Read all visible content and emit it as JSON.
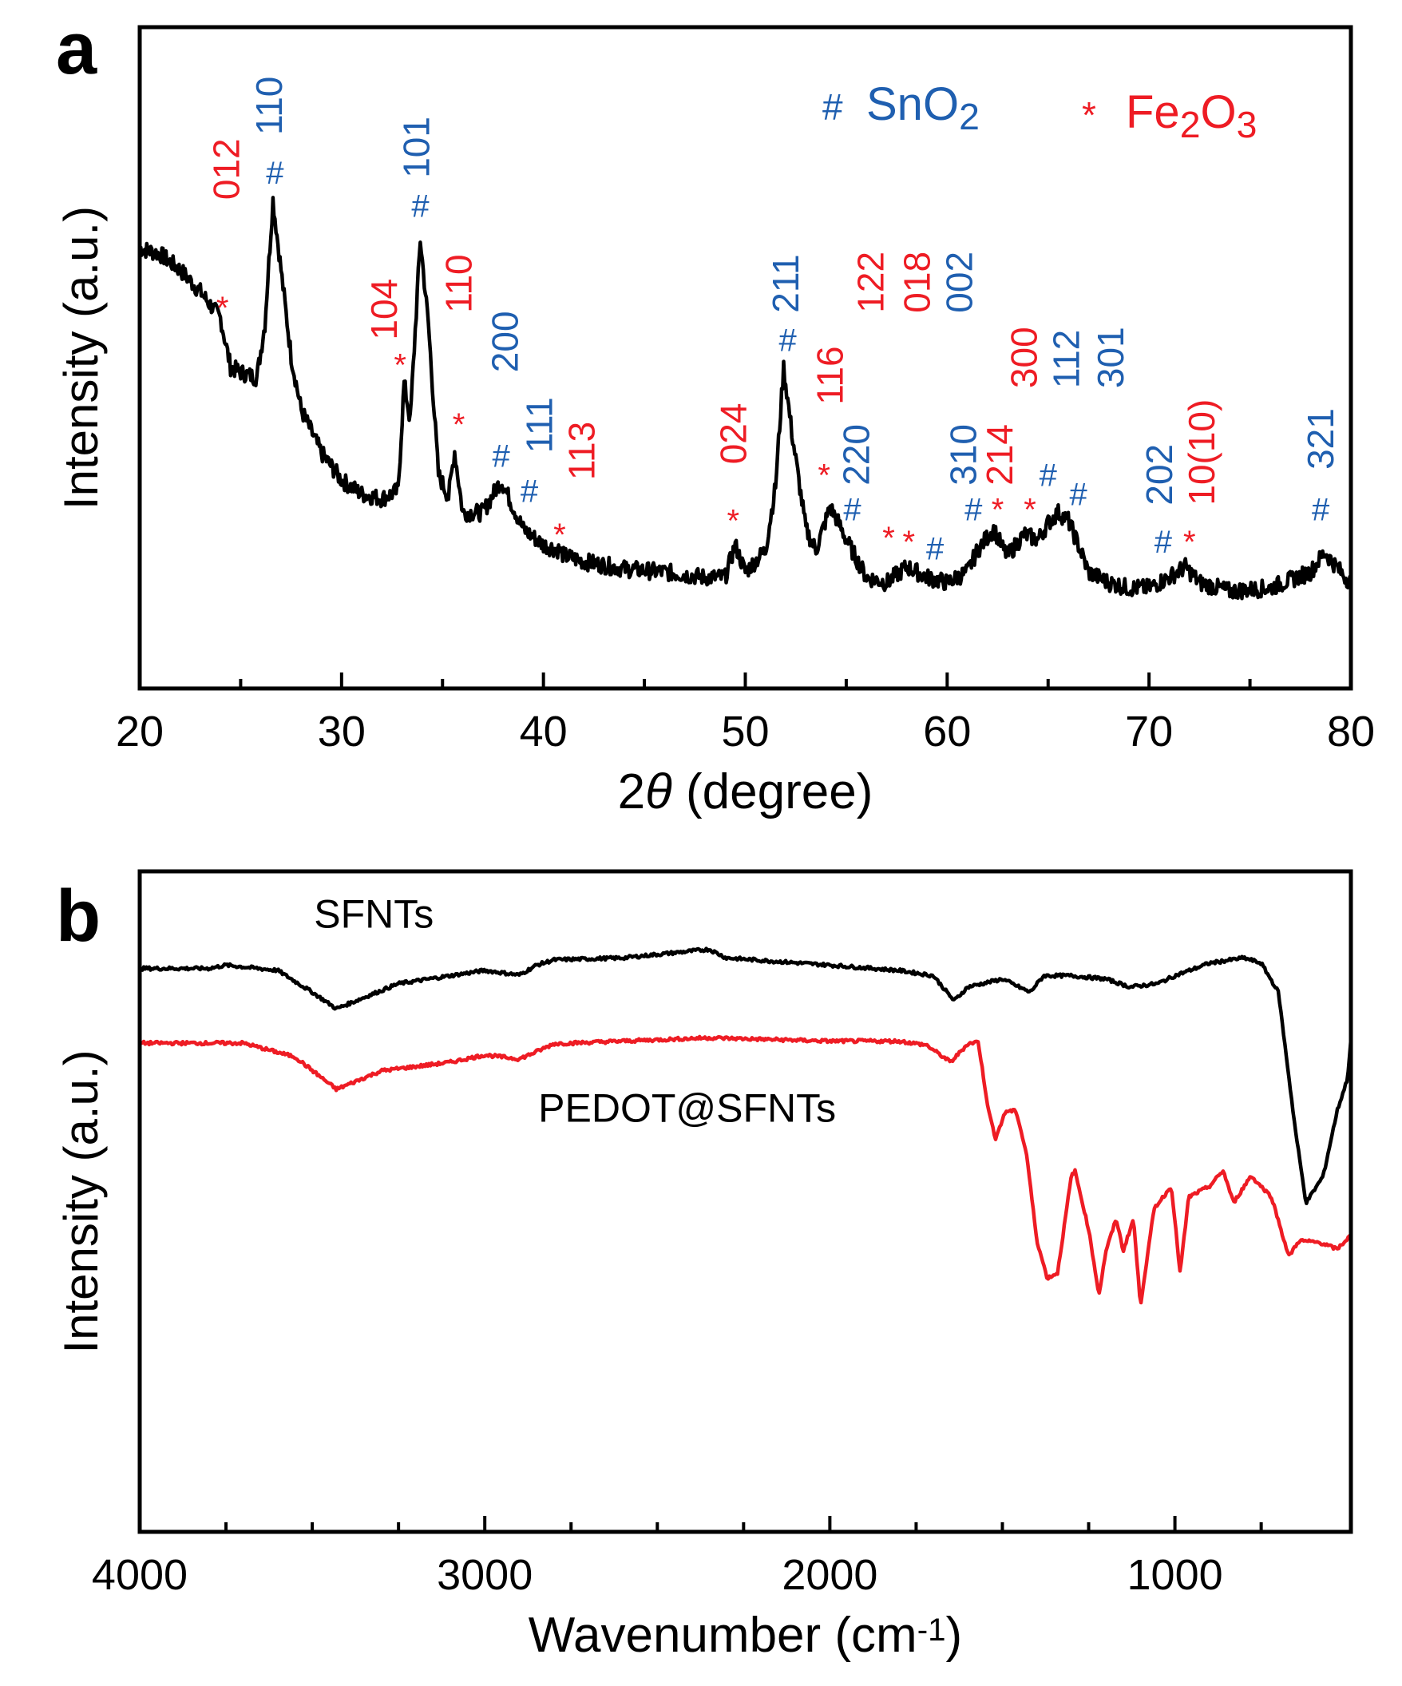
{
  "chart_data": [
    {
      "panel": "a",
      "type": "line",
      "xlabel_parts": [
        {
          "t": "2"
        },
        {
          "t": "θ",
          "italic": true
        },
        {
          "t": " (degree)"
        }
      ],
      "ylabel": "Intensity (a.u.)",
      "xlim": [
        20,
        80
      ],
      "ylim": [
        0,
        100
      ],
      "xticks": [
        20,
        30,
        40,
        50,
        60,
        70,
        80
      ],
      "minor_xticks": [
        25,
        35,
        45,
        55,
        65,
        75
      ],
      "grid": false,
      "colors": {
        "line": "#000000",
        "snO2": "#1f5fb0",
        "fe2O3": "#ee1c24"
      },
      "legend": {
        "placement": "top-right",
        "entries": [
          {
            "marker": "#",
            "color_key": "snO2",
            "parts": [
              {
                "t": "SnO"
              },
              {
                "t": "2",
                "sub": true
              }
            ]
          },
          {
            "marker": "*",
            "color_key": "fe2O3",
            "parts": [
              {
                "t": "Fe"
              },
              {
                "t": "2",
                "sub": true
              },
              {
                "t": "O"
              },
              {
                "t": "3",
                "sub": true
              }
            ]
          }
        ]
      },
      "series": [
        {
          "name": "XRD",
          "x": [
            20,
            21,
            22,
            23,
            24,
            24.5,
            25,
            25.8,
            26.2,
            26.6,
            27,
            27.5,
            28,
            29,
            30,
            31,
            32,
            32.8,
            33.1,
            33.4,
            33.9,
            34.3,
            34.8,
            35.3,
            35.6,
            36,
            37,
            37.9,
            38.5,
            39,
            40,
            40.8,
            41,
            42,
            44,
            46,
            48,
            49,
            49.5,
            50,
            51,
            51.5,
            51.9,
            52.3,
            53,
            53.5,
            54.2,
            54.5,
            55,
            56,
            57,
            58,
            59,
            60,
            61,
            61.5,
            62.3,
            62.8,
            63,
            63.8,
            64.5,
            65,
            65.5,
            66,
            66.5,
            67,
            68,
            69,
            70,
            71,
            71.8,
            72.5,
            74,
            76,
            78,
            78.7,
            79.5,
            80
          ],
          "y": [
            66.6,
            65.7,
            63.3,
            60.0,
            56.0,
            48.6,
            47.8,
            47.0,
            55.1,
            73.9,
            63.3,
            50.2,
            42.1,
            35.6,
            31.5,
            29.4,
            28.7,
            29.9,
            46.2,
            40.5,
            67.9,
            55.1,
            32.3,
            29.0,
            35.9,
            26.6,
            26.6,
            31.5,
            27.4,
            24.1,
            21.7,
            20.9,
            20.1,
            19.2,
            18.1,
            17.6,
            16.8,
            16.8,
            21.7,
            17.6,
            20.9,
            30.7,
            48.6,
            38.8,
            24.1,
            20.9,
            27.4,
            25.8,
            22.5,
            16.8,
            16.0,
            18.4,
            16.8,
            16.0,
            17.6,
            20.9,
            24.1,
            20.9,
            20.1,
            23.3,
            22.5,
            25.0,
            26.6,
            25.4,
            21.7,
            17.6,
            16.0,
            15.2,
            15.2,
            16.8,
            18.4,
            16.0,
            14.7,
            15.2,
            17.6,
            20.6,
            17.6,
            16.0
          ]
        }
      ],
      "markers": [
        {
          "symbol": "*",
          "phase": "fe2O3",
          "x": 24.1,
          "y": 57.6
        },
        {
          "symbol": "#",
          "phase": "snO2",
          "x": 26.7,
          "y": 78.0
        },
        {
          "symbol": "*",
          "phase": "fe2O3",
          "x": 32.9,
          "y": 49.0
        },
        {
          "symbol": "#",
          "phase": "snO2",
          "x": 33.9,
          "y": 73.0
        },
        {
          "symbol": "*",
          "phase": "fe2O3",
          "x": 35.8,
          "y": 40.0
        },
        {
          "symbol": "#",
          "phase": "snO2",
          "x": 37.9,
          "y": 35.2
        },
        {
          "symbol": "#",
          "phase": "snO2",
          "x": 39.3,
          "y": 29.9
        },
        {
          "symbol": "*",
          "phase": "fe2O3",
          "x": 40.8,
          "y": 23.3
        },
        {
          "symbol": "*",
          "phase": "fe2O3",
          "x": 49.4,
          "y": 25.4
        },
        {
          "symbol": "#",
          "phase": "snO2",
          "x": 52.1,
          "y": 52.7
        },
        {
          "symbol": "*",
          "phase": "fe2O3",
          "x": 53.9,
          "y": 32.3
        },
        {
          "symbol": "#",
          "phase": "snO2",
          "x": 55.3,
          "y": 27.1
        },
        {
          "symbol": "*",
          "phase": "fe2O3",
          "x": 57.1,
          "y": 22.8
        },
        {
          "symbol": "*",
          "phase": "fe2O3",
          "x": 58.1,
          "y": 22.2
        },
        {
          "symbol": "#",
          "phase": "snO2",
          "x": 59.4,
          "y": 21.2
        },
        {
          "symbol": "#",
          "phase": "snO2",
          "x": 61.3,
          "y": 27.1
        },
        {
          "symbol": "*",
          "phase": "fe2O3",
          "x": 62.5,
          "y": 27.1
        },
        {
          "symbol": "*",
          "phase": "fe2O3",
          "x": 64.1,
          "y": 27.1
        },
        {
          "symbol": "#",
          "phase": "snO2",
          "x": 65.0,
          "y": 32.3
        },
        {
          "symbol": "#",
          "phase": "snO2",
          "x": 66.5,
          "y": 29.4
        },
        {
          "symbol": "#",
          "phase": "snO2",
          "x": 70.7,
          "y": 22.2
        },
        {
          "symbol": "*",
          "phase": "fe2O3",
          "x": 72.0,
          "y": 22.2
        },
        {
          "symbol": "#",
          "phase": "snO2",
          "x": 78.5,
          "y": 27.1
        }
      ],
      "annotations": [
        {
          "text": "012",
          "phase": "fe2O3",
          "x": 24.3,
          "y": 73.9
        },
        {
          "text": "110",
          "phase": "snO2",
          "x": 26.4,
          "y": 83.7
        },
        {
          "text": "104",
          "phase": "fe2O3",
          "x": 32.1,
          "y": 52.7
        },
        {
          "text": "101",
          "phase": "snO2",
          "x": 33.7,
          "y": 77.2
        },
        {
          "text": "110",
          "phase": "fe2O3",
          "x": 35.8,
          "y": 56.8
        },
        {
          "text": "200",
          "phase": "snO2",
          "x": 38.1,
          "y": 47.8
        },
        {
          "text": "111",
          "phase": "snO2",
          "x": 39.8,
          "y": 35.6
        },
        {
          "text": "113",
          "phase": "fe2O3",
          "x": 41.9,
          "y": 31.5
        },
        {
          "text": "024",
          "phase": "fe2O3",
          "x": 49.4,
          "y": 33.9
        },
        {
          "text": "211",
          "phase": "snO2",
          "x": 52.0,
          "y": 56.8
        },
        {
          "text": "116",
          "phase": "fe2O3",
          "x": 54.2,
          "y": 42.9
        },
        {
          "text": "220",
          "phase": "snO2",
          "x": 55.5,
          "y": 30.7
        },
        {
          "text": "122",
          "phase": "fe2O3",
          "x": 56.2,
          "y": 56.8
        },
        {
          "text": "018",
          "phase": "fe2O3",
          "x": 58.5,
          "y": 56.8
        },
        {
          "text": "002",
          "phase": "snO2",
          "x": 60.6,
          "y": 56.8
        },
        {
          "text": "310",
          "phase": "snO2",
          "x": 60.8,
          "y": 30.7
        },
        {
          "text": "214",
          "phase": "fe2O3",
          "x": 62.6,
          "y": 30.7
        },
        {
          "text": "300",
          "phase": "fe2O3",
          "x": 63.8,
          "y": 45.4
        },
        {
          "text": "112",
          "phase": "snO2",
          "x": 65.9,
          "y": 45.4
        },
        {
          "text": "301",
          "phase": "snO2",
          "x": 68.1,
          "y": 45.4
        },
        {
          "text": "202",
          "phase": "snO2",
          "x": 70.5,
          "y": 27.7
        },
        {
          "text": "10(10)",
          "phase": "fe2O3",
          "x": 72.6,
          "y": 27.7
        },
        {
          "text": "321",
          "phase": "snO2",
          "x": 78.5,
          "y": 33.1
        }
      ]
    },
    {
      "panel": "b",
      "type": "line",
      "xlabel_parts": [
        {
          "t": "Wavenumber (cm"
        },
        {
          "t": "-1",
          "sup": true
        },
        {
          "t": ")"
        }
      ],
      "ylabel": "Intensity (a.u.)",
      "xlim": [
        4000,
        490
      ],
      "ylim": [
        0,
        100
      ],
      "xticks": [
        4000,
        3000,
        2000,
        1000
      ],
      "minor_xticks": [
        3750,
        3500,
        3250,
        2750,
        2500,
        2250,
        1750,
        1500,
        1250,
        750
      ],
      "grid": false,
      "series": [
        {
          "name": "SFNTs",
          "color": "#000000",
          "label_x": 3495,
          "label_y": 91.5,
          "x": [
            4000,
            3800,
            3750,
            3600,
            3500,
            3430,
            3350,
            3250,
            3100,
            3000,
            2900,
            2850,
            2800,
            2600,
            2350,
            2300,
            2000,
            1800,
            1700,
            1640,
            1600,
            1500,
            1420,
            1380,
            1300,
            1200,
            1130,
            1050,
            1000,
            900,
            800,
            750,
            700,
            650,
            620,
            570,
            530,
            500,
            490
          ],
          "y": [
            85.3,
            85.3,
            85.8,
            85.0,
            81.7,
            79.2,
            80.9,
            83.0,
            84.2,
            85.0,
            84.3,
            85.8,
            86.6,
            86.9,
            88.2,
            86.9,
            85.8,
            85.0,
            84.2,
            80.4,
            82.5,
            83.7,
            81.7,
            84.2,
            84.2,
            83.7,
            82.5,
            83.0,
            84.2,
            86.1,
            86.9,
            86.1,
            81.7,
            60.5,
            49.8,
            53.9,
            63.7,
            68.6,
            74.3
          ]
        },
        {
          "name": "PEDOT@SFNTs",
          "color": "#ee1c24",
          "label_x": 2845,
          "label_y": 62.1,
          "x": [
            4000,
            3700,
            3550,
            3430,
            3300,
            3100,
            3000,
            2900,
            2850,
            2800,
            2600,
            2350,
            2000,
            1800,
            1720,
            1650,
            1600,
            1570,
            1540,
            1520,
            1490,
            1460,
            1430,
            1400,
            1370,
            1340,
            1300,
            1290,
            1250,
            1220,
            1200,
            1170,
            1150,
            1120,
            1100,
            1060,
            1010,
            985,
            960,
            900,
            860,
            830,
            780,
            720,
            670,
            640,
            580,
            530,
            490
          ],
          "y": [
            74.0,
            74.0,
            71.9,
            67.0,
            69.8,
            71.1,
            72.2,
            71.6,
            72.7,
            73.9,
            74.3,
            74.8,
            74.3,
            74.3,
            73.7,
            71.1,
            73.9,
            74.2,
            63.7,
            59.6,
            63.7,
            63.7,
            57.2,
            44.1,
            38.4,
            39.2,
            53.9,
            54.7,
            45.8,
            35.9,
            42.5,
            47.4,
            42.5,
            47.4,
            34.3,
            49.0,
            52.3,
            39.2,
            50.7,
            52.3,
            54.7,
            49.8,
            53.9,
            50.7,
            41.7,
            44.1,
            43.8,
            42.8,
            44.9
          ]
        }
      ]
    }
  ]
}
